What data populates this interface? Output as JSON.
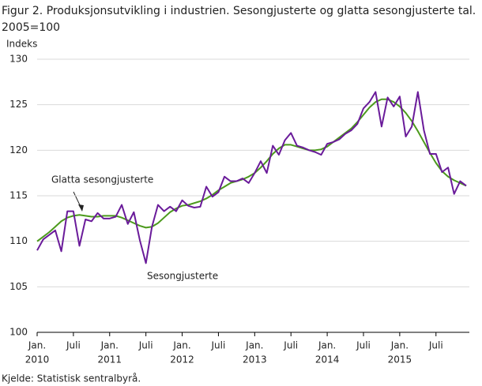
{
  "chart_data": {
    "type": "line",
    "title": "Figur 2. Produksjonsutvikling i industrien. Sesongjusterte og glatta sesongjusterte tal.",
    "subtitle": "2005=100",
    "y_label": "Indeks",
    "source": "Kjelde: Statistisk sentralbyrå.",
    "categories": [
      "Jan.",
      null,
      null,
      null,
      null,
      null,
      "Juli",
      null,
      null,
      null,
      null,
      null,
      "Jan.",
      null,
      null,
      null,
      null,
      null,
      "Juli",
      null,
      null,
      null,
      null,
      null,
      "Jan.",
      null,
      null,
      null,
      null,
      null,
      "Juli",
      null,
      null,
      null,
      null,
      null,
      "Jan.",
      null,
      null,
      null,
      null,
      null,
      "Juli",
      null,
      null,
      null,
      null,
      null,
      "Jan.",
      null,
      null,
      null,
      null,
      null,
      "Juli",
      null,
      null,
      null,
      null,
      null,
      "Jan.",
      null,
      null,
      null,
      null,
      null,
      "Juli",
      null,
      null,
      null,
      null,
      null
    ],
    "x_sublabels": [
      "2010",
      null,
      null,
      null,
      null,
      null,
      null,
      null,
      null,
      null,
      null,
      null,
      "2011",
      null,
      null,
      null,
      null,
      null,
      null,
      null,
      null,
      null,
      null,
      null,
      "2012",
      null,
      null,
      null,
      null,
      null,
      null,
      null,
      null,
      null,
      null,
      null,
      "2013",
      null,
      null,
      null,
      null,
      null,
      null,
      null,
      null,
      null,
      null,
      null,
      "2014",
      null,
      null,
      null,
      null,
      null,
      null,
      null,
      null,
      null,
      null,
      null,
      "2015",
      null,
      null,
      null,
      null,
      null,
      null,
      null,
      null,
      null,
      null,
      null
    ],
    "series": [
      {
        "name": "Sesongjusterte",
        "color": "#6a1b9a",
        "values": [
          109.0,
          110.2,
          110.7,
          111.2,
          108.9,
          113.3,
          113.3,
          109.5,
          112.4,
          112.2,
          113.1,
          112.5,
          112.5,
          112.7,
          114.0,
          111.9,
          113.2,
          110.1,
          107.6,
          111.6,
          114.0,
          113.3,
          113.8,
          113.3,
          114.5,
          113.9,
          113.7,
          113.8,
          116.0,
          114.9,
          115.4,
          117.1,
          116.6,
          116.6,
          116.9,
          116.4,
          117.5,
          118.8,
          117.5,
          120.5,
          119.5,
          121.1,
          121.9,
          120.5,
          120.3,
          120.0,
          119.8,
          119.5,
          120.7,
          120.9,
          121.2,
          121.8,
          122.2,
          122.9,
          124.6,
          125.3,
          126.4,
          122.6,
          125.8,
          124.8,
          125.9,
          121.5,
          122.6,
          126.4,
          122.2,
          119.6,
          119.6,
          117.6,
          118.1,
          115.2,
          116.6,
          116.1
        ]
      },
      {
        "name": "Glatta sesongjusterte",
        "color": "#4c9a1c",
        "values": [
          110.0,
          110.5,
          111.0,
          111.6,
          112.2,
          112.6,
          112.8,
          112.9,
          112.8,
          112.7,
          112.7,
          112.8,
          112.8,
          112.8,
          112.6,
          112.3,
          112.0,
          111.7,
          111.5,
          111.6,
          112.0,
          112.6,
          113.2,
          113.6,
          113.9,
          114.0,
          114.2,
          114.4,
          114.7,
          115.1,
          115.6,
          116.0,
          116.4,
          116.6,
          116.8,
          117.1,
          117.5,
          118.1,
          118.8,
          119.6,
          120.2,
          120.6,
          120.6,
          120.4,
          120.2,
          120.0,
          120.0,
          120.1,
          120.4,
          120.9,
          121.4,
          121.9,
          122.4,
          123.1,
          123.9,
          124.7,
          125.3,
          125.6,
          125.6,
          125.3,
          124.8,
          124.1,
          123.2,
          122.1,
          120.9,
          119.7,
          118.6,
          117.7,
          117.1,
          116.7,
          116.4,
          116.1
        ]
      }
    ],
    "ylim": [
      100,
      130
    ],
    "yticks": [
      100,
      105,
      110,
      115,
      120,
      125,
      130
    ],
    "grid": true
  }
}
